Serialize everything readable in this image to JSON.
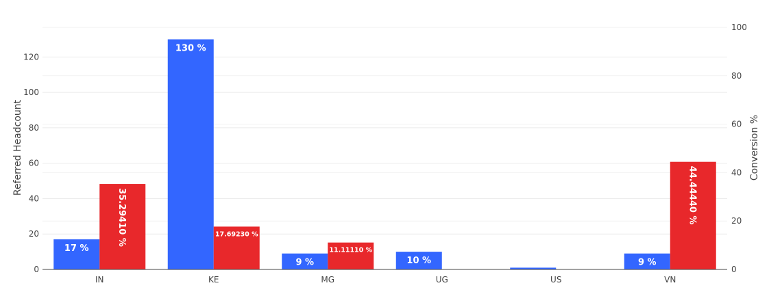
{
  "chart_data": {
    "type": "bar",
    "categories": [
      "IN",
      "KE",
      "MG",
      "UG",
      "US",
      "VN"
    ],
    "ylabel": "Referred Headcount",
    "y2label": "Conversion %",
    "ylim": [
      0,
      135
    ],
    "y2lim": [
      0,
      100
    ],
    "yticks": [
      0,
      20,
      40,
      60,
      80,
      100,
      120
    ],
    "y2ticks": [
      0,
      20,
      40,
      60,
      80,
      100
    ],
    "grid": true,
    "series": [
      {
        "axis": "left",
        "color": "#3366ff",
        "values": [
          17,
          130,
          9,
          10,
          1,
          9
        ],
        "labels": [
          "17 %",
          "130 %",
          "9 %",
          "10 %",
          "",
          "9 %"
        ]
      },
      {
        "axis": "right",
        "color": "#e8282b",
        "values": [
          35.2941,
          17.6923,
          11.1111,
          0,
          0,
          44.4444
        ],
        "labels": [
          "35.29410 %",
          "17.69230 %",
          "11.11110 %",
          "",
          "",
          "44.44440 %"
        ]
      }
    ]
  }
}
